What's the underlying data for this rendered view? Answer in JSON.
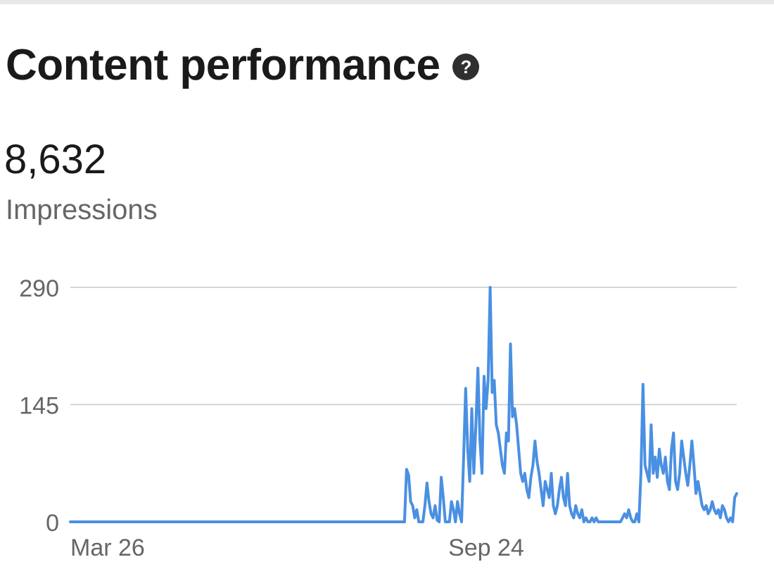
{
  "header": {
    "title": "Content performance",
    "help_icon": "question-circle-icon"
  },
  "metric": {
    "value": "8,632",
    "label": "Impressions"
  },
  "colors": {
    "line": "#4a90e2",
    "grid": "#c9c9c9",
    "axis_text": "#666666"
  },
  "chart_data": {
    "type": "line",
    "xlabel": "",
    "ylabel": "",
    "ylim": [
      0,
      290
    ],
    "y_ticks": [
      "0",
      "145",
      "290"
    ],
    "y_tick_values": [
      0,
      145,
      290
    ],
    "x_ticks": [
      "Mar 26",
      "Sep 24"
    ],
    "x_tick_index": [
      0,
      182
    ],
    "grid": true,
    "legend": "none",
    "series": [
      {
        "values": [
          0,
          0,
          0,
          0,
          0,
          0,
          0,
          0,
          0,
          0,
          0,
          0,
          0,
          0,
          0,
          0,
          0,
          0,
          0,
          0,
          0,
          0,
          0,
          0,
          0,
          0,
          0,
          0,
          0,
          0,
          0,
          0,
          0,
          0,
          0,
          0,
          0,
          0,
          0,
          0,
          0,
          0,
          0,
          0,
          0,
          0,
          0,
          0,
          0,
          0,
          0,
          0,
          0,
          0,
          0,
          0,
          0,
          0,
          0,
          0,
          0,
          0,
          0,
          0,
          0,
          0,
          0,
          0,
          0,
          0,
          0,
          0,
          0,
          0,
          0,
          0,
          0,
          0,
          0,
          0,
          0,
          0,
          0,
          0,
          0,
          0,
          0,
          0,
          0,
          0,
          0,
          0,
          0,
          0,
          0,
          0,
          0,
          0,
          0,
          0,
          0,
          0,
          0,
          0,
          0,
          0,
          0,
          0,
          0,
          0,
          0,
          0,
          0,
          0,
          0,
          0,
          0,
          0,
          0,
          0,
          0,
          0,
          0,
          0,
          0,
          0,
          0,
          0,
          0,
          0,
          0,
          0,
          0,
          0,
          0,
          0,
          0,
          0,
          0,
          0,
          0,
          0,
          0,
          0,
          0,
          0,
          0,
          0,
          0,
          0,
          0,
          0,
          0,
          0,
          0,
          0,
          0,
          0,
          0,
          0,
          0,
          0,
          0,
          0,
          0,
          65,
          58,
          25,
          20,
          5,
          15,
          0,
          0,
          0,
          20,
          48,
          25,
          10,
          5,
          20,
          2,
          0,
          55,
          30,
          0,
          0,
          0,
          25,
          15,
          0,
          25,
          10,
          0,
          80,
          165,
          90,
          50,
          140,
          60,
          120,
          190,
          100,
          60,
          180,
          140,
          175,
          290,
          160,
          175,
          120,
          110,
          90,
          70,
          60,
          110,
          100,
          220,
          130,
          140,
          120,
          90,
          60,
          50,
          60,
          40,
          30,
          55,
          70,
          100,
          75,
          60,
          40,
          20,
          50,
          40,
          30,
          60,
          20,
          10,
          20,
          40,
          55,
          30,
          20,
          60,
          20,
          10,
          5,
          20,
          10,
          5,
          15,
          0,
          5,
          0,
          0,
          5,
          0,
          5,
          0,
          0,
          0,
          0,
          0,
          0,
          0,
          0,
          0,
          0,
          0,
          0,
          5,
          10,
          5,
          15,
          5,
          0,
          0,
          10,
          0,
          60,
          170,
          70,
          60,
          50,
          120,
          60,
          80,
          55,
          90,
          70,
          60,
          80,
          50,
          40,
          90,
          110,
          50,
          40,
          60,
          100,
          80,
          60,
          45,
          70,
          100,
          70,
          35,
          50,
          35,
          20,
          15,
          20,
          10,
          15,
          25,
          15,
          10,
          15,
          5,
          20,
          15,
          5,
          0,
          5,
          0,
          30,
          35
        ]
      }
    ]
  }
}
